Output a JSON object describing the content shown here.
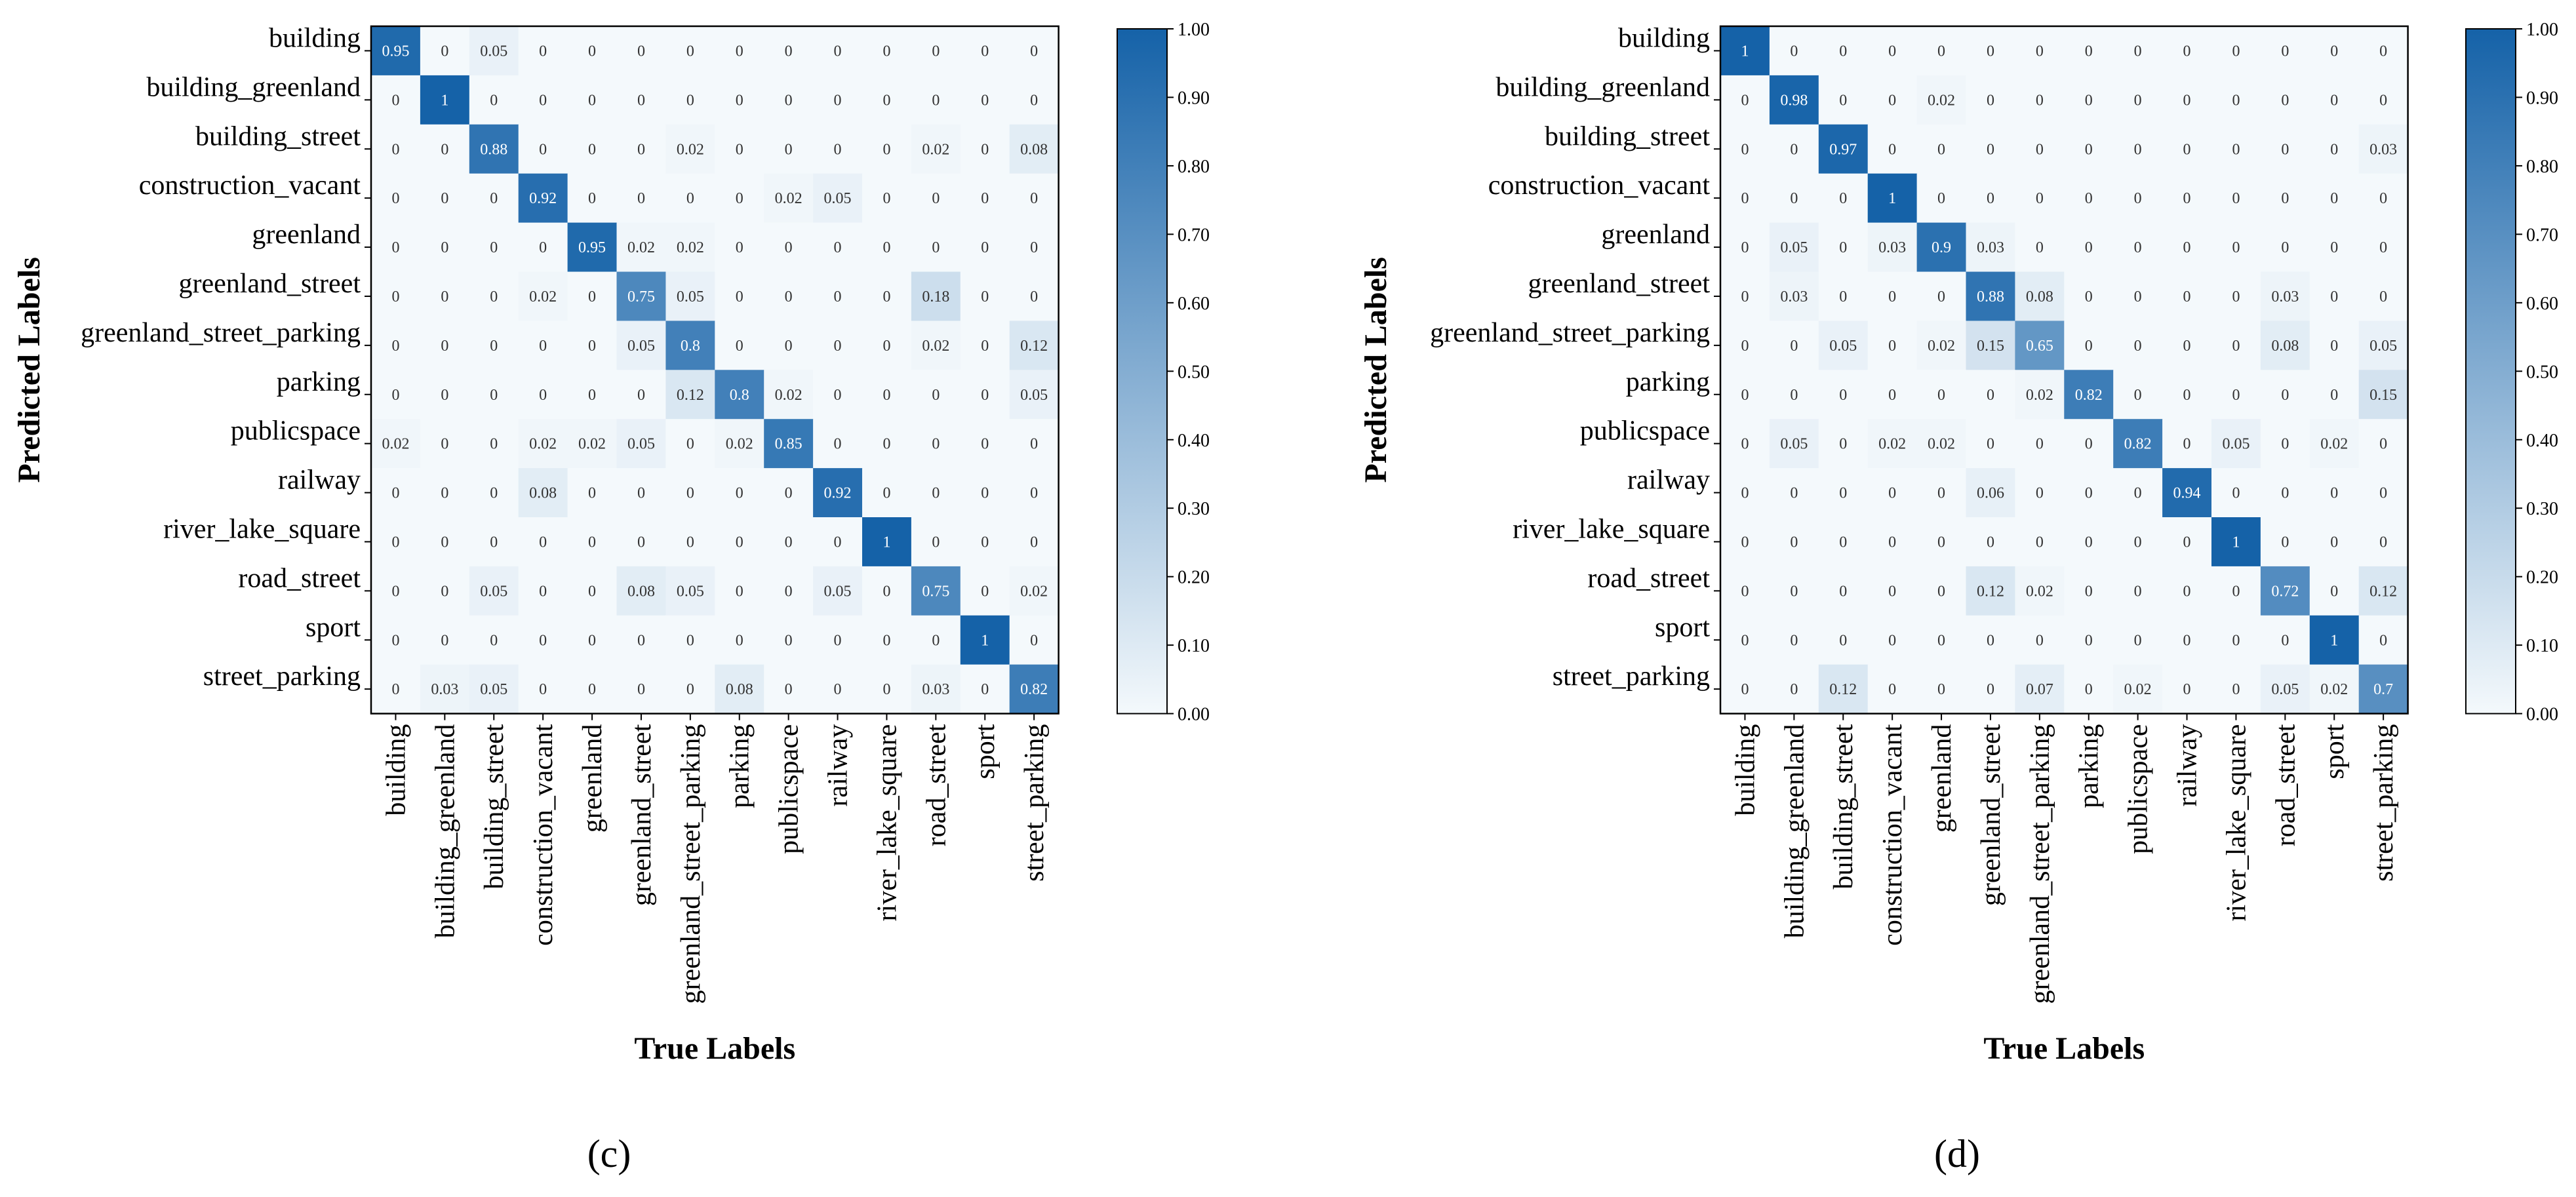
{
  "colorscale": {
    "low": "#f4f9fc",
    "high": "#1562a8"
  },
  "chart_data": [
    {
      "type": "heatmap",
      "panel_label": "(c)",
      "xlabel": "True Labels",
      "ylabel": "Predicted Labels",
      "categories": [
        "building",
        "building_greenland",
        "building_street",
        "construction_vacant",
        "greenland",
        "greenland_street",
        "greenland_street_parking",
        "parking",
        "publicspace",
        "railway",
        "river_lake_square",
        "road_street",
        "sport",
        "street_parking"
      ],
      "colorbar": {
        "range": [
          0,
          1
        ],
        "ticks": [
          "0.00",
          "0.10",
          "0.20",
          "0.30",
          "0.40",
          "0.50",
          "0.60",
          "0.70",
          "0.80",
          "0.90",
          "1.00"
        ]
      },
      "matrix": [
        [
          0.95,
          0,
          0.05,
          0,
          0,
          0,
          0,
          0,
          0,
          0,
          0,
          0,
          0,
          0
        ],
        [
          0,
          1,
          0,
          0,
          0,
          0,
          0,
          0,
          0,
          0,
          0,
          0,
          0,
          0
        ],
        [
          0,
          0,
          0.88,
          0,
          0,
          0,
          0.02,
          0,
          0,
          0,
          0,
          0.02,
          0,
          0.08
        ],
        [
          0,
          0,
          0,
          0.92,
          0,
          0,
          0,
          0,
          0.02,
          0.05,
          0,
          0,
          0,
          0
        ],
        [
          0,
          0,
          0,
          0,
          0.95,
          0.02,
          0.02,
          0,
          0,
          0,
          0,
          0,
          0,
          0
        ],
        [
          0,
          0,
          0,
          0.02,
          0,
          0.75,
          0.05,
          0,
          0,
          0,
          0,
          0.18,
          0,
          0
        ],
        [
          0,
          0,
          0,
          0,
          0,
          0.05,
          0.8,
          0,
          0,
          0,
          0,
          0.02,
          0,
          0.12
        ],
        [
          0,
          0,
          0,
          0,
          0,
          0,
          0.12,
          0.8,
          0.02,
          0,
          0,
          0,
          0,
          0.05
        ],
        [
          0.02,
          0,
          0,
          0.02,
          0.02,
          0.05,
          0,
          0.02,
          0.85,
          0,
          0,
          0,
          0,
          0
        ],
        [
          0,
          0,
          0,
          0.08,
          0,
          0,
          0,
          0,
          0,
          0.92,
          0,
          0,
          0,
          0
        ],
        [
          0,
          0,
          0,
          0,
          0,
          0,
          0,
          0,
          0,
          0,
          1,
          0,
          0,
          0
        ],
        [
          0,
          0,
          0.05,
          0,
          0,
          0.08,
          0.05,
          0,
          0,
          0.05,
          0,
          0.75,
          0,
          0.02
        ],
        [
          0,
          0,
          0,
          0,
          0,
          0,
          0,
          0,
          0,
          0,
          0,
          0,
          1,
          0
        ],
        [
          0,
          0.03,
          0.05,
          0,
          0,
          0,
          0,
          0.08,
          0,
          0,
          0,
          0.03,
          0,
          0.82
        ]
      ]
    },
    {
      "type": "heatmap",
      "panel_label": "(d)",
      "xlabel": "True Labels",
      "ylabel": "Predicted Labels",
      "categories": [
        "building",
        "building_greenland",
        "building_street",
        "construction_vacant",
        "greenland",
        "greenland_street",
        "greenland_street_parking",
        "parking",
        "publicspace",
        "railway",
        "river_lake_square",
        "road_street",
        "sport",
        "street_parking"
      ],
      "colorbar": {
        "range": [
          0,
          1
        ],
        "ticks": [
          "0.00",
          "0.10",
          "0.20",
          "0.30",
          "0.40",
          "0.50",
          "0.60",
          "0.70",
          "0.80",
          "0.90",
          "1.00"
        ]
      },
      "matrix": [
        [
          1,
          0,
          0,
          0,
          0,
          0,
          0,
          0,
          0,
          0,
          0,
          0,
          0,
          0
        ],
        [
          0,
          0.98,
          0,
          0,
          0.02,
          0,
          0,
          0,
          0,
          0,
          0,
          0,
          0,
          0
        ],
        [
          0,
          0,
          0.97,
          0,
          0,
          0,
          0,
          0,
          0,
          0,
          0,
          0,
          0,
          0.03
        ],
        [
          0,
          0,
          0,
          1,
          0,
          0,
          0,
          0,
          0,
          0,
          0,
          0,
          0,
          0
        ],
        [
          0,
          0.05,
          0,
          0.03,
          0.9,
          0.03,
          0,
          0,
          0,
          0,
          0,
          0,
          0,
          0
        ],
        [
          0,
          0.03,
          0,
          0,
          0,
          0.88,
          0.08,
          0,
          0,
          0,
          0,
          0.03,
          0,
          0
        ],
        [
          0,
          0,
          0.05,
          0,
          0.02,
          0.15,
          0.65,
          0,
          0,
          0,
          0,
          0.08,
          0,
          0.05
        ],
        [
          0,
          0,
          0,
          0,
          0,
          0,
          0.02,
          0.82,
          0,
          0,
          0,
          0,
          0,
          0.15
        ],
        [
          0,
          0.05,
          0,
          0.02,
          0.02,
          0,
          0,
          0,
          0.82,
          0,
          0.05,
          0,
          0.02,
          0
        ],
        [
          0,
          0,
          0,
          0,
          0,
          0.06,
          0,
          0,
          0,
          0.94,
          0,
          0,
          0,
          0
        ],
        [
          0,
          0,
          0,
          0,
          0,
          0,
          0,
          0,
          0,
          0,
          1,
          0,
          0,
          0
        ],
        [
          0,
          0,
          0,
          0,
          0,
          0.12,
          0.02,
          0,
          0,
          0,
          0,
          0.72,
          0,
          0.12
        ],
        [
          0,
          0,
          0,
          0,
          0,
          0,
          0,
          0,
          0,
          0,
          0,
          0,
          1,
          0
        ],
        [
          0,
          0,
          0.12,
          0,
          0,
          0,
          0.07,
          0,
          0.02,
          0,
          0,
          0.05,
          0.02,
          0.7
        ]
      ]
    }
  ]
}
